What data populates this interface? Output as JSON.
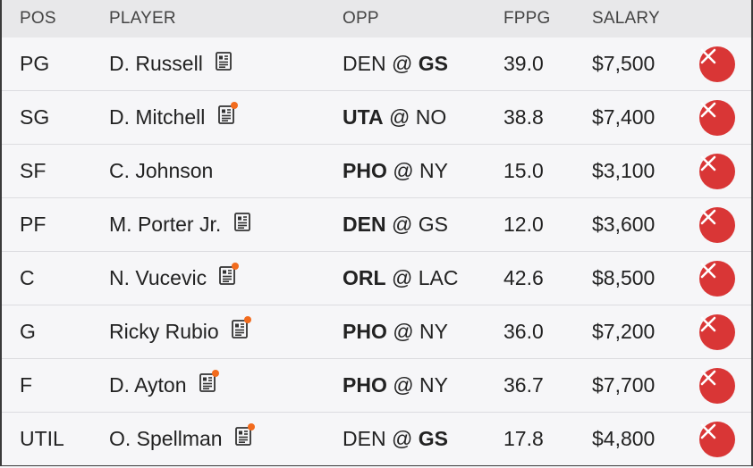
{
  "header": {
    "pos": "POS",
    "player": "PLAYER",
    "opp": "OPP",
    "fppg": "FPPG",
    "salary": "SALARY"
  },
  "rows": [
    {
      "pos": "PG",
      "player": "D. Russell",
      "news_icon": "player-news-icon",
      "news_alert": false,
      "away": "DEN",
      "at": "@",
      "home": "GS",
      "bold_team": "home",
      "fppg": "39.0",
      "salary": "$7,500"
    },
    {
      "pos": "SG",
      "player": "D. Mitchell",
      "news_icon": "player-news-icon",
      "news_alert": true,
      "away": "UTA",
      "at": "@",
      "home": "NO",
      "bold_team": "away",
      "fppg": "38.8",
      "salary": "$7,400"
    },
    {
      "pos": "SF",
      "player": "C. Johnson",
      "news_icon": null,
      "news_alert": false,
      "away": "PHO",
      "at": "@",
      "home": "NY",
      "bold_team": "away",
      "fppg": "15.0",
      "salary": "$3,100"
    },
    {
      "pos": "PF",
      "player": "M. Porter Jr.",
      "news_icon": "player-news-icon",
      "news_alert": false,
      "away": "DEN",
      "at": "@",
      "home": "GS",
      "bold_team": "away",
      "fppg": "12.0",
      "salary": "$3,600"
    },
    {
      "pos": "C",
      "player": "N. Vucevic",
      "news_icon": "player-news-icon",
      "news_alert": true,
      "away": "ORL",
      "at": "@",
      "home": "LAC",
      "bold_team": "away",
      "fppg": "42.6",
      "salary": "$8,500"
    },
    {
      "pos": "G",
      "player": "Ricky Rubio",
      "news_icon": "player-news-icon",
      "news_alert": true,
      "away": "PHO",
      "at": "@",
      "home": "NY",
      "bold_team": "away",
      "fppg": "36.0",
      "salary": "$7,200"
    },
    {
      "pos": "F",
      "player": "D. Ayton",
      "news_icon": "player-news-icon",
      "news_alert": true,
      "away": "PHO",
      "at": "@",
      "home": "NY",
      "bold_team": "away",
      "fppg": "36.7",
      "salary": "$7,700"
    },
    {
      "pos": "UTIL",
      "player": "O. Spellman",
      "news_icon": "player-news-icon",
      "news_alert": true,
      "away": "DEN",
      "at": "@",
      "home": "GS",
      "bold_team": "home",
      "fppg": "17.8",
      "salary": "$4,800"
    }
  ],
  "icons": {
    "remove": "remove-player-icon",
    "news": "player-news-icon"
  },
  "colors": {
    "remove_button": "#d93636",
    "news_alert_dot": "#f26b1d",
    "header_bg": "#e8e8ea",
    "row_bg": "#f6f6f8"
  }
}
